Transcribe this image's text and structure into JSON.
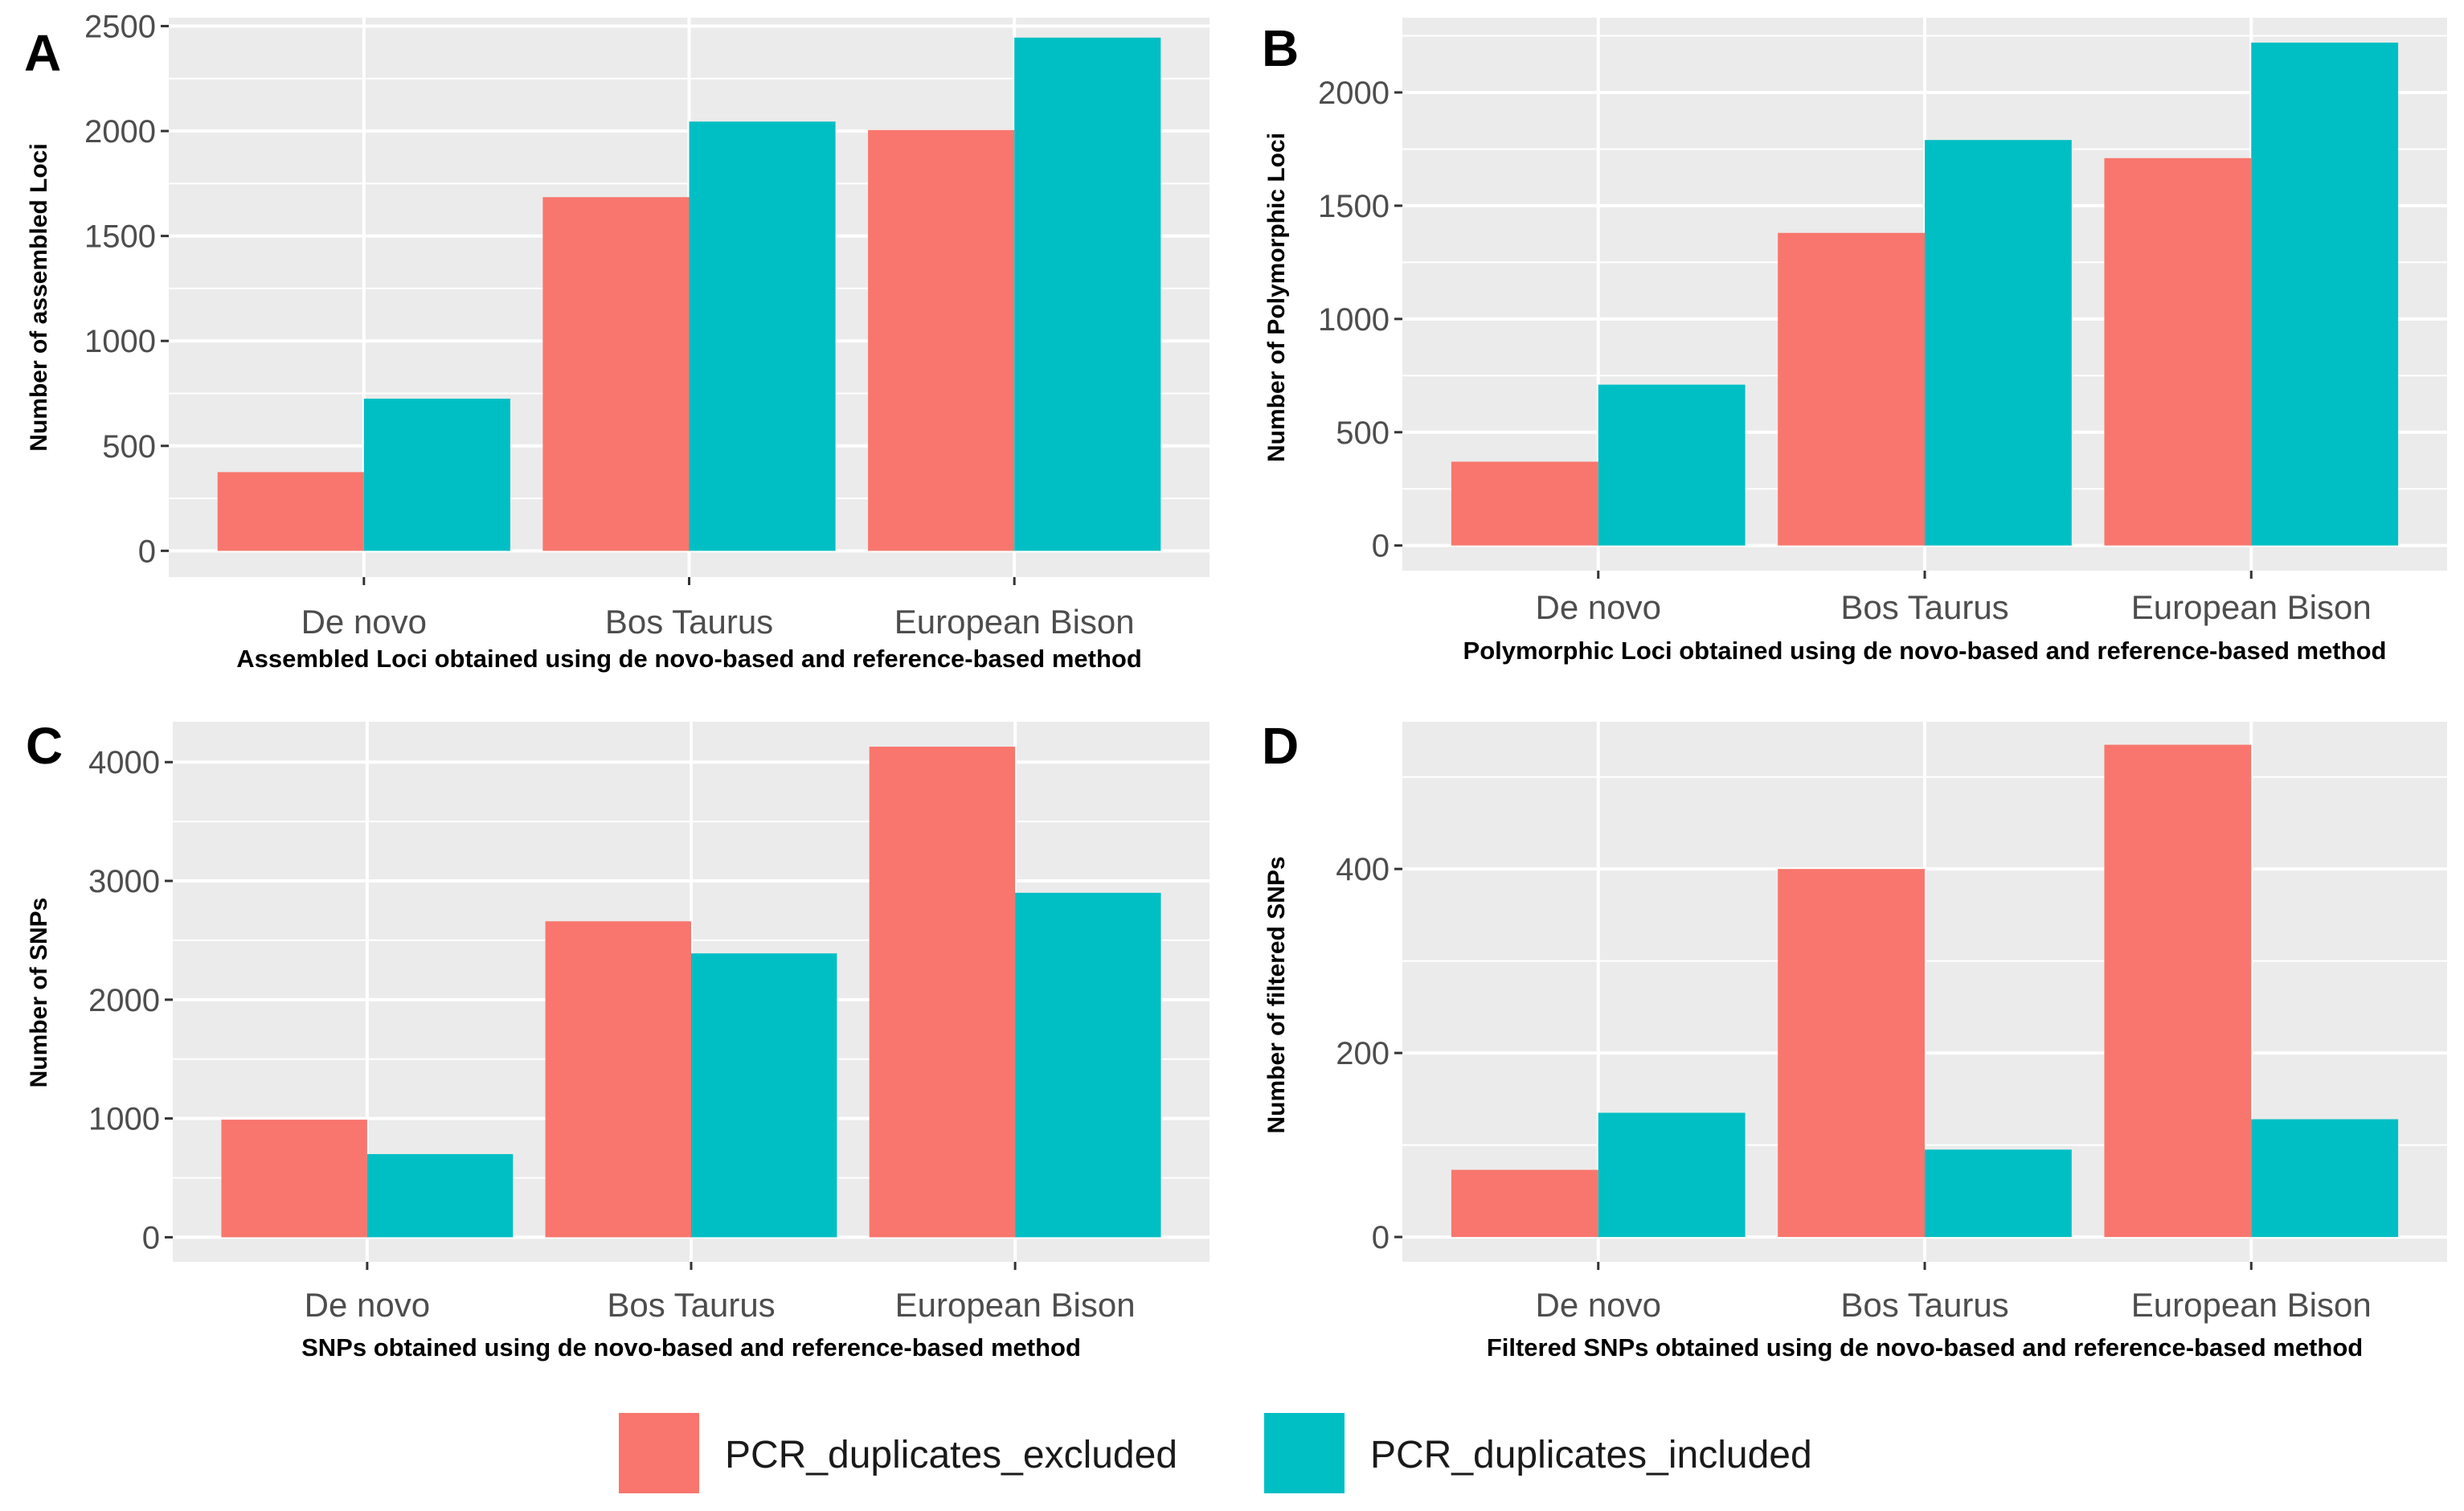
{
  "colors": {
    "excluded": "#F8766D",
    "included": "#00BFC4",
    "panel_bg": "#EBEBEB",
    "grid": "#FFFFFF"
  },
  "chart_data": [
    {
      "panel": "A",
      "type": "bar",
      "categories": [
        "De novo",
        "Bos Taurus",
        "European Bison"
      ],
      "series": [
        {
          "name": "PCR_duplicates_excluded",
          "values": [
            375,
            1685,
            2005
          ]
        },
        {
          "name": "PCR_duplicates_included",
          "values": [
            725,
            2045,
            2445
          ]
        }
      ],
      "yticks": [
        0,
        500,
        1000,
        1500,
        2000,
        2500
      ],
      "ylim": [
        -125,
        2540
      ],
      "xlabel": "Assembled Loci obtained using de novo-based and reference-based method",
      "ylabel": "Number of assembled Loci"
    },
    {
      "panel": "B",
      "type": "bar",
      "categories": [
        "De novo",
        "Bos Taurus",
        "European Bison"
      ],
      "series": [
        {
          "name": "PCR_duplicates_excluded",
          "values": [
            370,
            1380,
            1710
          ]
        },
        {
          "name": "PCR_duplicates_included",
          "values": [
            710,
            1790,
            2220
          ]
        }
      ],
      "yticks": [
        0,
        500,
        1000,
        1500,
        2000
      ],
      "ylim": [
        -111,
        2330
      ],
      "xlabel": "Polymorphic Loci obtained using de novo-based and reference-based method",
      "ylabel": "Number of Polymorphic Loci"
    },
    {
      "panel": "C",
      "type": "bar",
      "categories": [
        "De novo",
        "Bos Taurus",
        "European Bison"
      ],
      "series": [
        {
          "name": "PCR_duplicates_excluded",
          "values": [
            990,
            2660,
            4130
          ]
        },
        {
          "name": "PCR_duplicates_included",
          "values": [
            700,
            2390,
            2900
          ]
        }
      ],
      "yticks": [
        0,
        1000,
        2000,
        3000,
        4000
      ],
      "ylim": [
        -207,
        4340
      ],
      "xlabel": "SNPs obtained using de novo-based and reference-based method",
      "ylabel": "Number of SNPs"
    },
    {
      "panel": "D",
      "type": "bar",
      "categories": [
        "De novo",
        "Bos Taurus",
        "European Bison"
      ],
      "series": [
        {
          "name": "PCR_duplicates_excluded",
          "values": [
            73,
            400,
            535
          ]
        },
        {
          "name": "PCR_duplicates_included",
          "values": [
            135,
            95,
            128
          ]
        }
      ],
      "yticks": [
        0,
        200,
        400
      ],
      "ylim": [
        -27,
        560
      ],
      "xlabel": "Filtered SNPs obtained using de novo-based and reference-based method",
      "ylabel": "Number of filtered SNPs"
    }
  ],
  "legend": {
    "items": [
      {
        "label": "PCR_duplicates_excluded"
      },
      {
        "label": "PCR_duplicates_included"
      }
    ]
  }
}
